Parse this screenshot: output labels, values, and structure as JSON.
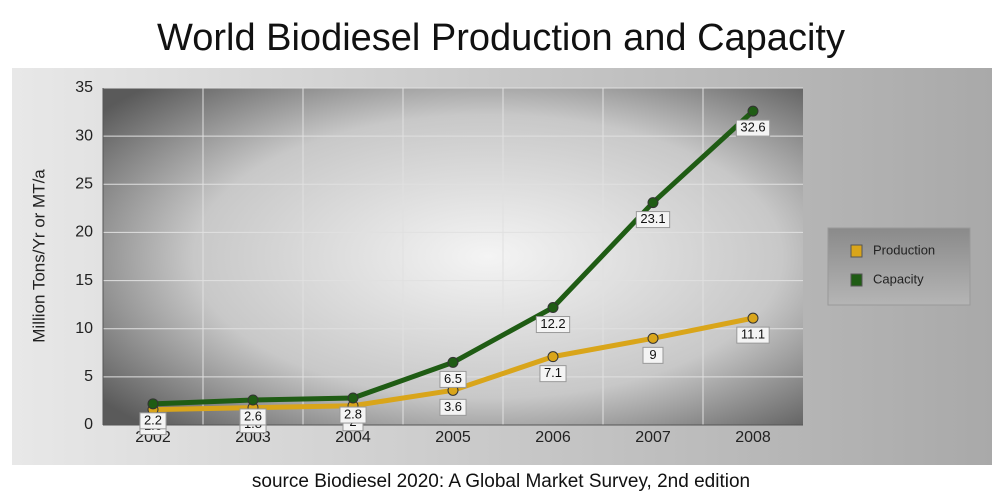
{
  "chart_data": {
    "type": "line",
    "title": "World Biodiesel Production and Capacity",
    "y_label": "Million Tons/Yr or MT/a",
    "source": "source Biodiesel 2020: A Global Market Survey, 2nd edition",
    "categories": [
      "2002",
      "2003",
      "2004",
      "2005",
      "2006",
      "2007",
      "2008"
    ],
    "series": [
      {
        "name": "Production",
        "color": "#d9a51a",
        "values": [
          1.6,
          1.8,
          2,
          3.6,
          7.1,
          9,
          11.1
        ]
      },
      {
        "name": "Capacity",
        "color": "#1f5c14",
        "values": [
          2.2,
          2.6,
          2.8,
          6.5,
          12.2,
          23.1,
          32.6
        ]
      }
    ],
    "ylim": [
      0,
      35
    ],
    "yticks": [
      0,
      5,
      10,
      15,
      20,
      25,
      30,
      35
    ],
    "grid": true,
    "legend": "right"
  }
}
